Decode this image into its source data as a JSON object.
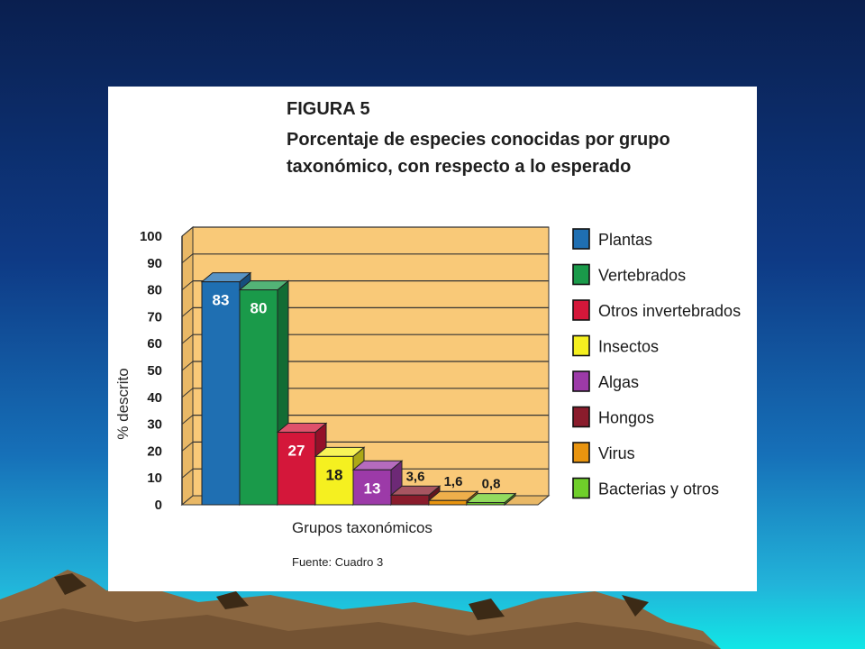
{
  "figure": {
    "label": "FIGURA 5",
    "title": "Porcentaje de especies conocidas por grupo taxonómico, con respecto a lo esperado",
    "source": "Fuente: Cuadro 3"
  },
  "chart_data": {
    "type": "bar",
    "title": "Porcentaje de especies conocidas por grupo taxonómico, con respecto a lo esperado",
    "xlabel": "Grupos taxonómicos",
    "ylabel": "% descrito",
    "ylim": [
      0,
      100
    ],
    "yticks": [
      "0",
      "10",
      "20",
      "30",
      "40",
      "50",
      "60",
      "70",
      "80",
      "90",
      "100"
    ],
    "grid": true,
    "legend_position": "right",
    "categories": [
      "Plantas",
      "Vertebrados",
      "Otros invertebrados",
      "Insectos",
      "Algas",
      "Hongos",
      "Virus",
      "Bacterias y otros"
    ],
    "values": [
      83,
      80,
      27,
      18,
      13,
      3.6,
      1.6,
      0.8
    ],
    "value_labels": [
      "83",
      "80",
      "27",
      "18",
      "13",
      "3,6",
      "1,6",
      "0,8"
    ],
    "colors": [
      "#1f6fb2",
      "#1a9a4a",
      "#d4173a",
      "#f5f020",
      "#9c3aa8",
      "#8a1c2c",
      "#e8940f",
      "#6fcf2a"
    ],
    "plot_background": "#f9c978"
  }
}
